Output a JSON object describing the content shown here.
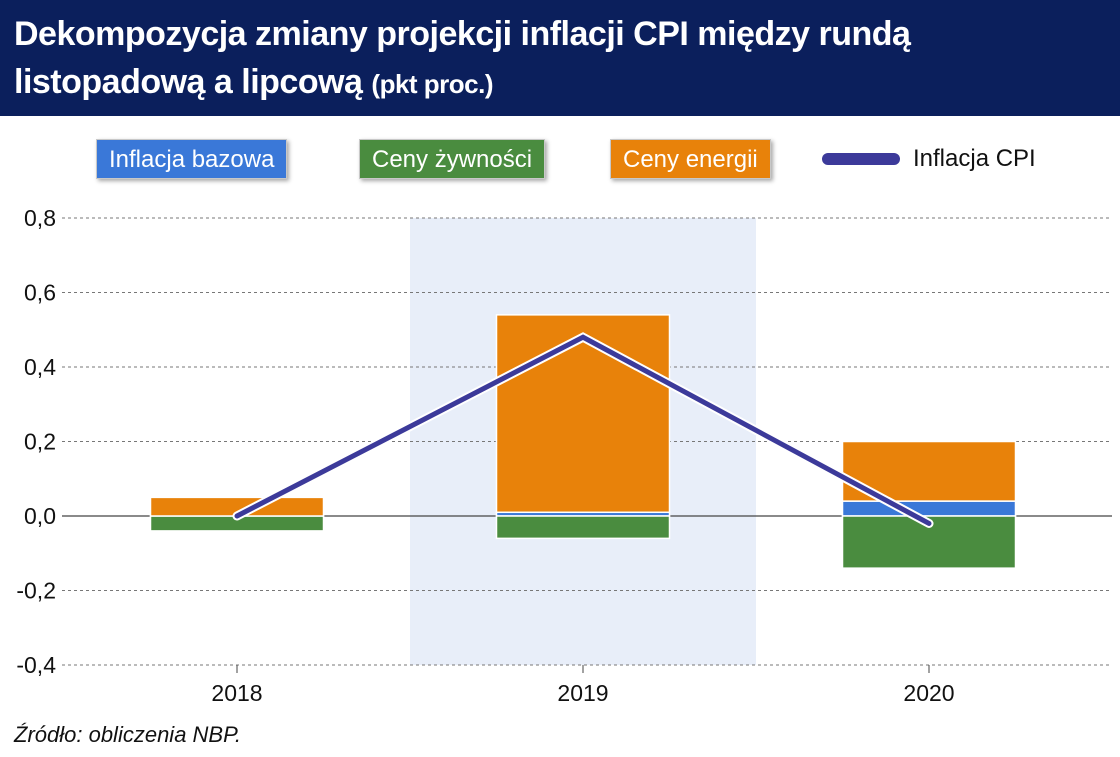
{
  "header": {
    "title": "Dekompozycja zmiany projekcji inflacji CPI między rundą listopadową a lipcową",
    "subtitle": "(pkt proc.)"
  },
  "colors": {
    "header_bg": "#0b1f5c",
    "inflacja_bazowa": "#3a78d8",
    "ceny_zywnosci": "#4a8c3f",
    "ceny_energii": "#e8820a",
    "inflacja_cpi": "#3c3a9a",
    "highlight": "#e8eef9"
  },
  "legend": {
    "inflacja_bazowa": "Inflacja bazowa",
    "ceny_zywnosci": "Ceny żywności",
    "ceny_energii": "Ceny energii",
    "inflacja_cpi": "Inflacja CPI"
  },
  "chart_data": {
    "type": "bar",
    "stacked": true,
    "categories": [
      "2018",
      "2019",
      "2020"
    ],
    "series": [
      {
        "name": "Inflacja bazowa",
        "type": "bar",
        "values": [
          0.0,
          0.01,
          0.04
        ]
      },
      {
        "name": "Ceny żywności",
        "type": "bar",
        "values": [
          -0.04,
          -0.06,
          -0.14
        ]
      },
      {
        "name": "Ceny energii",
        "type": "bar",
        "values": [
          0.05,
          0.53,
          0.16
        ]
      },
      {
        "name": "Inflacja CPI",
        "type": "line",
        "values": [
          0.0,
          0.48,
          -0.02
        ]
      }
    ],
    "ylim": [
      -0.4,
      0.8
    ],
    "yticks": [
      "0,8",
      "0,6",
      "0,4",
      "0,2",
      "0,0",
      "-0,2",
      "-0,4"
    ],
    "ytick_values": [
      0.8,
      0.6,
      0.4,
      0.2,
      0.0,
      -0.2,
      -0.4
    ],
    "highlighted_category": "2019",
    "grid": true,
    "legend_position": "top"
  },
  "source": "Źródło: obliczenia NBP."
}
